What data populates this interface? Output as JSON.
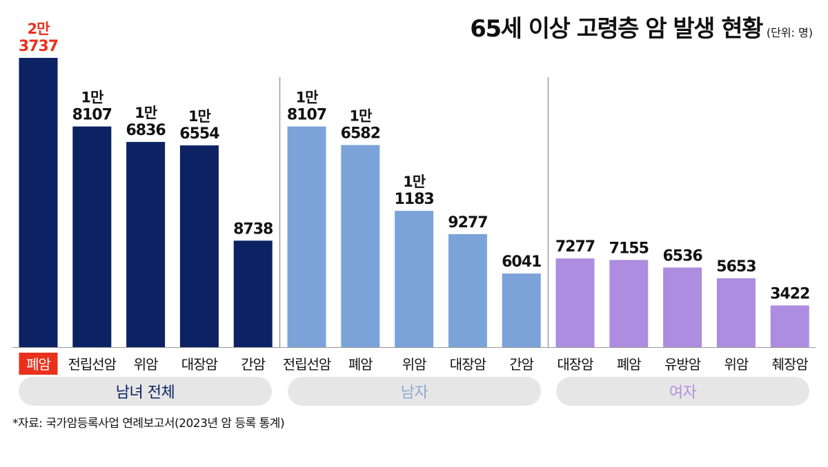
{
  "title": "65세 이상 고령층 암 발생 현황",
  "unit": "(단위: 명)",
  "footnote": "*자료: 국가암등록사업 연례보고서(2023년 암 등록 통계)",
  "colors": {
    "total": "#0c2263",
    "male": "#7ba3d9",
    "female": "#ad8ddf",
    "highlight": "#e8301c",
    "male_label": "#8fa9d2",
    "female_label": "#b491e0"
  },
  "chart_data": {
    "type": "bar",
    "ylim": [
      0,
      24000
    ],
    "groups": [
      {
        "name": "남녀 전체",
        "key": "total",
        "categories": [
          "폐암",
          "전립선암",
          "위암",
          "대장암",
          "간암"
        ],
        "values": [
          23737,
          18107,
          16836,
          16554,
          8738
        ],
        "value_labels": [
          [
            "2만",
            "3737"
          ],
          [
            "1만",
            "8107"
          ],
          [
            "1만",
            "6836"
          ],
          [
            "1만",
            "6554"
          ],
          [
            "8738"
          ]
        ]
      },
      {
        "name": "남자",
        "key": "male",
        "categories": [
          "전립선암",
          "폐암",
          "위암",
          "대장암",
          "간암"
        ],
        "values": [
          18107,
          16582,
          11183,
          9277,
          6041
        ],
        "value_labels": [
          [
            "1만",
            "8107"
          ],
          [
            "1만",
            "6582"
          ],
          [
            "1만",
            "1183"
          ],
          [
            "9277"
          ],
          [
            "6041"
          ]
        ]
      },
      {
        "name": "여자",
        "key": "female",
        "categories": [
          "대장암",
          "폐암",
          "유방암",
          "위암",
          "췌장암"
        ],
        "values": [
          7277,
          7155,
          6536,
          5653,
          3422
        ],
        "value_labels": [
          [
            "7277"
          ],
          [
            "7155"
          ],
          [
            "6536"
          ],
          [
            "5653"
          ],
          [
            "3422"
          ]
        ]
      }
    ],
    "highlight": {
      "group": 0,
      "index": 0
    }
  }
}
